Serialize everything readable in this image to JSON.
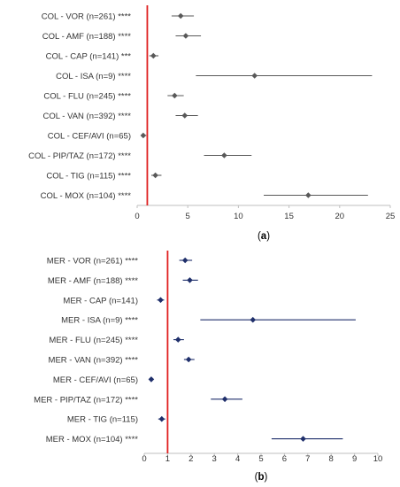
{
  "chart_data": [
    {
      "type": "scatter",
      "subtype": "forest-plot",
      "panel_label": "a",
      "categories": [
        "COL - VOR (n=261) ****",
        "COL - AMF (n=188) ****",
        "COL - CAP (n=141) ***",
        "COL - ISA (n=9) ****",
        "COL - FLU (n=245) ****",
        "COL - VAN (n=392) ****",
        "COL - CEF/AVI (n=65)",
        "COL - PIP/TAZ (n=172) ****",
        "COL - TIG (n=115) ****",
        "COL - MOX (n=104) ****"
      ],
      "point": [
        4.3,
        4.8,
        1.6,
        11.6,
        3.7,
        4.7,
        0.6,
        8.6,
        1.8,
        16.9
      ],
      "ci_low": [
        3.4,
        3.8,
        1.2,
        5.8,
        3.0,
        3.8,
        0.4,
        6.6,
        1.4,
        12.5
      ],
      "ci_high": [
        5.6,
        6.3,
        2.1,
        23.2,
        4.6,
        6.0,
        0.9,
        11.3,
        2.4,
        22.8
      ],
      "xlim": [
        0,
        25
      ],
      "xticks": [
        0,
        5,
        10,
        15,
        20,
        25
      ],
      "reference_line": 1,
      "marker_color": "#595959",
      "reference_color": "#e02020"
    },
    {
      "type": "scatter",
      "subtype": "forest-plot",
      "panel_label": "b",
      "categories": [
        "MER - VOR (n=261) ****",
        "MER - AMF (n=188) ****",
        "MER - CAP (n=141)",
        "MER - ISA (n=9) ****",
        "MER - FLU (n=245) ****",
        "MER - VAN (n=392) ****",
        "MER - CEF/AVI (n=65)",
        "MER - PIP/TAZ (n=172) ****",
        "MER - TIG (n=115)",
        "MER - MOX (n=104) ****"
      ],
      "point": [
        1.75,
        1.95,
        0.7,
        4.65,
        1.45,
        1.9,
        0.3,
        3.45,
        0.75,
        6.8
      ],
      "ci_low": [
        1.5,
        1.65,
        0.55,
        2.4,
        1.25,
        1.7,
        0.2,
        2.85,
        0.6,
        5.45
      ],
      "ci_high": [
        2.05,
        2.3,
        0.85,
        9.05,
        1.7,
        2.15,
        0.4,
        4.2,
        0.9,
        8.5
      ],
      "xlim": [
        0,
        10
      ],
      "xticks": [
        0,
        1,
        2,
        3,
        4,
        5,
        6,
        7,
        8,
        9,
        10
      ],
      "reference_line": 1,
      "marker_color": "#1f2f6b",
      "reference_color": "#e02020"
    }
  ]
}
